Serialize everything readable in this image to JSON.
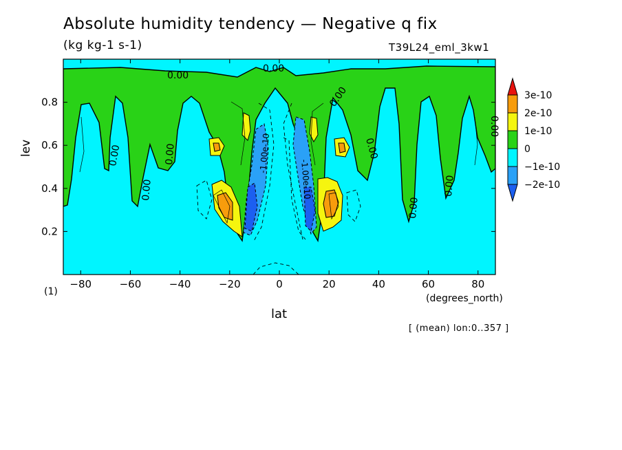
{
  "chart_data": {
    "type": "contour",
    "title": "Absolute humidity tendency — Negative q fix",
    "units": "(kg kg-1 s-1)",
    "run_label": "T39L24_eml_3kw1",
    "xlabel": "lat",
    "ylabel": "lev",
    "x_units": "(degrees_north)",
    "y_units": "(1)",
    "note": "[ (mean) lon:0..357 ]",
    "xlim": [
      -87,
      87
    ],
    "ylim": [
      1.0,
      0.0
    ],
    "x_ticks": [
      -80,
      -60,
      -40,
      -20,
      0,
      20,
      40,
      60,
      80
    ],
    "x_tick_labels": [
      "−80",
      "−60",
      "−40",
      "−20",
      "0",
      "20",
      "40",
      "60",
      "80"
    ],
    "y_ticks": [
      0.2,
      0.4,
      0.6,
      0.8
    ],
    "y_tick_labels": [
      "0.2",
      "0.4",
      "0.6",
      "0.8"
    ],
    "colorbar": {
      "levels": [
        "3e-10",
        "2e-10",
        "1e-10",
        "0",
        "−1e-10",
        "−2e-10"
      ],
      "colors": [
        "#e8130f",
        "#f79c0c",
        "#f5f50f",
        "#29d217",
        "#00f5ff",
        "#2aa1f7",
        "#1c5ff0"
      ]
    },
    "contour_labels": [
      "0.00",
      "0.00",
      "0.00",
      "0.00",
      "0.00",
      "0.00",
      "0.00",
      "0.00",
      "0.00",
      "0.00",
      "-1.00e-10",
      "-1.00e-10"
    ]
  }
}
